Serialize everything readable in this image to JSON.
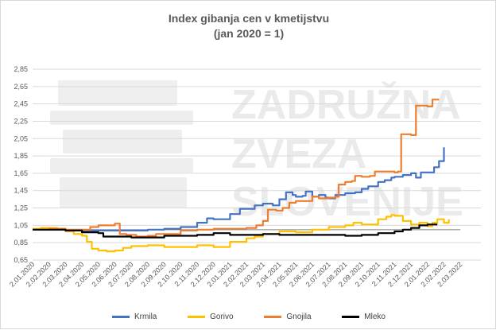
{
  "chart_data": {
    "type": "line",
    "title": "Index gibanja cen v kmetijstvu",
    "subtitle": "(jan 2020 = 1)",
    "watermark": [
      "ZADRUŽNA",
      "ZVEZA",
      "SLOVENIJE"
    ],
    "y_ticks": [
      "0,65",
      "0,85",
      "1,05",
      "1,25",
      "1,45",
      "1,65",
      "1,85",
      "2,05",
      "2,25",
      "2,45",
      "2,65",
      "2,85"
    ],
    "ylim": [
      0.65,
      2.85
    ],
    "grid": true,
    "legend_position": "bottom",
    "x_labels": [
      "2.01.2020",
      "2.02.2020",
      "2.03.2020",
      "2.04.2020",
      "2.05.2020",
      "2.06.2020",
      "2.07.2020",
      "2.08.2020",
      "2.09.2020",
      "2.10.2020",
      "2.11.2020",
      "2.12.2020",
      "2.01.2021",
      "2.02.2021",
      "2.03.2021",
      "2.04.2021",
      "2.05.2021",
      "2.06.2021",
      "2.07.2021",
      "2.08.2021",
      "2.09.2021",
      "2.10.2021",
      "2.11.2021",
      "2.12.2021",
      "2.01.2022",
      "2.02.2022",
      "2.03.2022"
    ],
    "reference_line": 1.0,
    "series": [
      {
        "name": "Krmila",
        "color": "#4472c4",
        "points": [
          [
            0,
            1.0
          ],
          [
            1,
            1.0
          ],
          [
            2,
            0.99
          ],
          [
            3,
            0.99
          ],
          [
            4,
            0.99
          ],
          [
            5,
            0.99
          ],
          [
            6,
            0.99
          ],
          [
            7,
            1.0
          ],
          [
            8,
            1.01
          ],
          [
            9,
            1.03
          ],
          [
            10,
            1.08
          ],
          [
            10.6,
            1.13
          ],
          [
            11,
            1.12
          ],
          [
            12,
            1.18
          ],
          [
            12.6,
            1.24
          ],
          [
            13,
            1.24
          ],
          [
            13.5,
            1.28
          ],
          [
            14,
            1.3
          ],
          [
            14.6,
            1.28
          ],
          [
            15,
            1.35
          ],
          [
            15.4,
            1.43
          ],
          [
            15.8,
            1.4
          ],
          [
            16,
            1.38
          ],
          [
            16.4,
            1.39
          ],
          [
            16.6,
            1.44
          ],
          [
            17,
            1.38
          ],
          [
            17.4,
            1.4
          ],
          [
            17.8,
            1.37
          ],
          [
            18,
            1.36
          ],
          [
            18.4,
            1.4
          ],
          [
            19,
            1.42
          ],
          [
            19.6,
            1.43
          ],
          [
            20,
            1.47
          ],
          [
            20.4,
            1.5
          ],
          [
            21,
            1.55
          ],
          [
            21.4,
            1.57
          ],
          [
            21.8,
            1.6
          ],
          [
            22,
            1.61
          ],
          [
            22.5,
            1.63
          ],
          [
            23,
            1.65
          ],
          [
            23.3,
            1.6
          ],
          [
            23.6,
            1.66
          ],
          [
            24,
            1.66
          ],
          [
            24.4,
            1.72
          ],
          [
            24.7,
            1.79
          ],
          [
            25,
            1.95
          ]
        ]
      },
      {
        "name": "Gorivo",
        "color": "#ffc000",
        "points": [
          [
            0,
            1.01
          ],
          [
            0.5,
            1.02
          ],
          [
            1,
            1.02
          ],
          [
            1.5,
            1.01
          ],
          [
            2,
            0.98
          ],
          [
            2.5,
            0.95
          ],
          [
            3,
            0.93
          ],
          [
            3.3,
            0.86
          ],
          [
            3.6,
            0.78
          ],
          [
            4,
            0.76
          ],
          [
            4.5,
            0.75
          ],
          [
            5,
            0.76
          ],
          [
            5.5,
            0.79
          ],
          [
            6,
            0.81
          ],
          [
            7,
            0.82
          ],
          [
            8,
            0.8
          ],
          [
            9,
            0.8
          ],
          [
            10,
            0.82
          ],
          [
            11,
            0.8
          ],
          [
            12,
            0.86
          ],
          [
            13,
            0.9
          ],
          [
            13.5,
            0.92
          ],
          [
            14,
            0.95
          ],
          [
            15,
            0.98
          ],
          [
            16,
            0.97
          ],
          [
            17,
            1.0
          ],
          [
            18,
            1.03
          ],
          [
            19,
            1.05
          ],
          [
            19.5,
            1.08
          ],
          [
            20,
            1.06
          ],
          [
            21,
            1.12
          ],
          [
            21.5,
            1.15
          ],
          [
            21.8,
            1.17
          ],
          [
            22,
            1.16
          ],
          [
            22.5,
            1.1
          ],
          [
            23,
            1.06
          ],
          [
            23.5,
            1.08
          ],
          [
            24,
            1.04
          ],
          [
            24.3,
            1.08
          ],
          [
            24.6,
            1.12
          ],
          [
            25,
            1.08
          ],
          [
            25.3,
            1.12
          ]
        ]
      },
      {
        "name": "Gnojila",
        "color": "#ed7d31",
        "points": [
          [
            0,
            1.0
          ],
          [
            1,
            1.01
          ],
          [
            2,
            1.0
          ],
          [
            3,
            1.0
          ],
          [
            3.5,
            1.03
          ],
          [
            4,
            1.05
          ],
          [
            4.5,
            1.05
          ],
          [
            5,
            1.07
          ],
          [
            5.3,
            0.95
          ],
          [
            5.7,
            0.94
          ],
          [
            6,
            0.94
          ],
          [
            6.3,
            0.92
          ],
          [
            7,
            0.93
          ],
          [
            7.5,
            0.95
          ],
          [
            8,
            0.95
          ],
          [
            9,
            0.99
          ],
          [
            10,
            1.0
          ],
          [
            11,
            1.01
          ],
          [
            12,
            1.01
          ],
          [
            13,
            1.02
          ],
          [
            13.6,
            1.05
          ],
          [
            14,
            1.1
          ],
          [
            14.3,
            1.23
          ],
          [
            14.8,
            1.22
          ],
          [
            15.2,
            1.25
          ],
          [
            15.6,
            1.31
          ],
          [
            16,
            1.33
          ],
          [
            16.8,
            1.33
          ],
          [
            17,
            1.38
          ],
          [
            17.4,
            1.36
          ],
          [
            18,
            1.37
          ],
          [
            18.4,
            1.38
          ],
          [
            18.6,
            1.52
          ],
          [
            19,
            1.55
          ],
          [
            19.4,
            1.56
          ],
          [
            19.6,
            1.62
          ],
          [
            20,
            1.61
          ],
          [
            20.5,
            1.62
          ],
          [
            20.8,
            1.67
          ],
          [
            21,
            1.67
          ],
          [
            21.8,
            1.67
          ],
          [
            22,
            1.66
          ],
          [
            22.2,
            1.67
          ],
          [
            22.4,
            2.1
          ],
          [
            22.6,
            2.1
          ],
          [
            23,
            2.09
          ],
          [
            23.3,
            2.43
          ],
          [
            23.7,
            2.43
          ],
          [
            24,
            2.42
          ],
          [
            24.3,
            2.5
          ],
          [
            24.7,
            2.5
          ]
        ]
      },
      {
        "name": "Mleko",
        "color": "#000000",
        "points": [
          [
            0,
            1.0
          ],
          [
            1,
            1.0
          ],
          [
            2,
            0.99
          ],
          [
            3,
            0.97
          ],
          [
            4,
            0.96
          ],
          [
            4.3,
            0.92
          ],
          [
            5,
            0.92
          ],
          [
            6,
            0.91
          ],
          [
            7,
            0.91
          ],
          [
            8,
            0.93
          ],
          [
            9,
            0.93
          ],
          [
            10,
            0.94
          ],
          [
            11,
            0.96
          ],
          [
            12,
            0.94
          ],
          [
            13,
            0.94
          ],
          [
            14,
            0.95
          ],
          [
            15,
            0.94
          ],
          [
            16,
            0.94
          ],
          [
            17,
            0.94
          ],
          [
            18,
            0.94
          ],
          [
            19,
            0.93
          ],
          [
            20,
            0.94
          ],
          [
            21,
            0.96
          ],
          [
            22,
            0.98
          ],
          [
            22.5,
            1.0
          ],
          [
            23,
            1.02
          ],
          [
            23.5,
            1.05
          ],
          [
            24,
            1.06
          ],
          [
            24.6,
            1.06
          ]
        ]
      }
    ]
  }
}
